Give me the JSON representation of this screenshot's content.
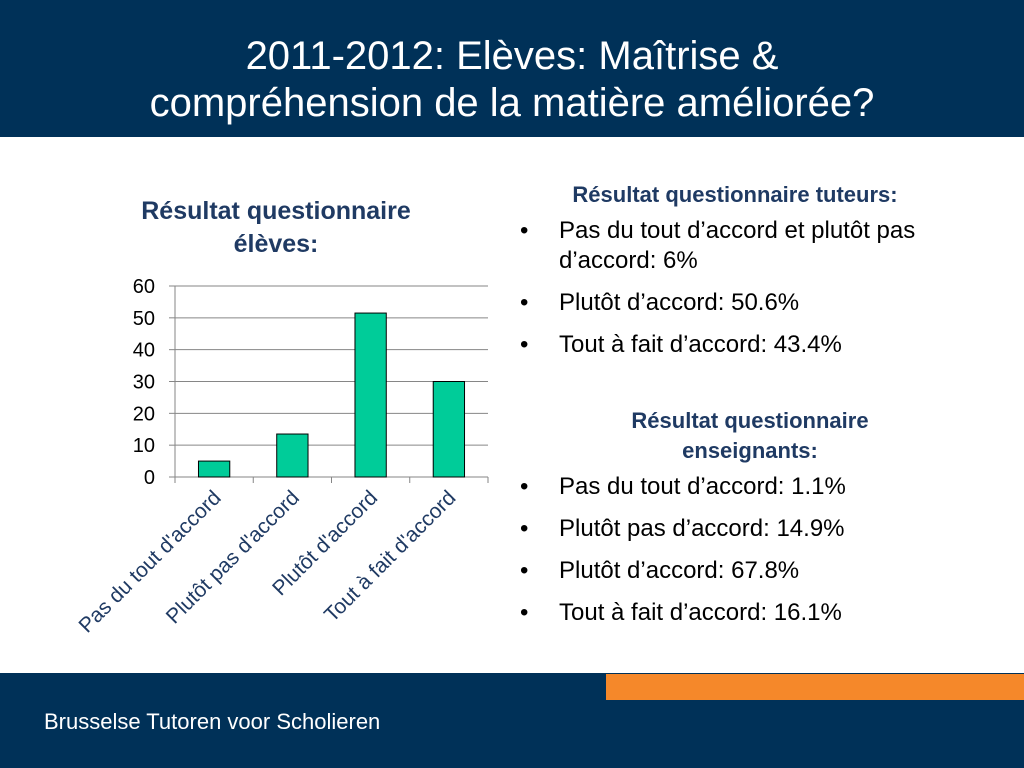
{
  "slide": {
    "title_line1": "2011-2012: Elèves: Maîtrise &",
    "title_line2": "compréhension de la matière améliorée?",
    "footer": "Brusselse Tutoren voor Scholieren",
    "colors": {
      "header": "#003158",
      "accent": "#f5882a",
      "bar": "#00cc99",
      "heading": "#1f3a63"
    }
  },
  "chart_data": {
    "type": "bar",
    "title_line1": "Résultat questionnaire",
    "title_line2": "élèves:",
    "categories": [
      "Pas du tout d'accord",
      "Plutôt pas d'accord",
      "Plutôt d'accord",
      "Tout à fait d'accord"
    ],
    "values": [
      5,
      13.5,
      51.5,
      30
    ],
    "ylim": [
      0,
      60
    ],
    "yticks": [
      0,
      10,
      20,
      30,
      40,
      50,
      60
    ],
    "grid": true,
    "legend": "none"
  },
  "tuteurs": {
    "title": "Résultat questionnaire tuteurs:",
    "items": [
      "Pas du tout d’accord et plutôt pas d’accord: 6%",
      "Plutôt d’accord: 50.6%",
      "Tout à fait d’accord: 43.4%"
    ]
  },
  "enseignants": {
    "title_line1": "Résultat questionnaire",
    "title_line2": "enseignants:",
    "items": [
      "Pas du tout d’accord: 1.1%",
      "Plutôt pas d’accord: 14.9%",
      "Plutôt d’accord: 67.8%",
      "Tout à fait d’accord: 16.1%"
    ]
  }
}
